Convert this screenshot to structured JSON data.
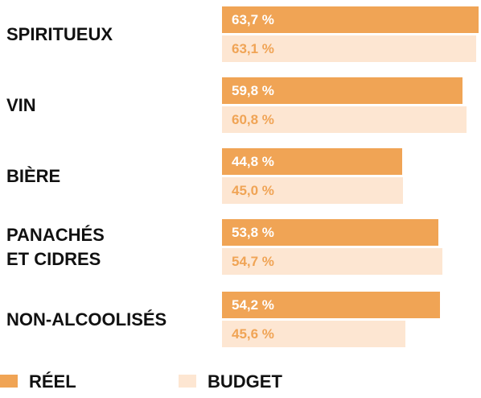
{
  "chart_data": {
    "type": "hbar",
    "categories": [
      "SPIRITUEUX",
      "VIN",
      "BIÈRE",
      "PANACHÉS\nET CIDRES",
      "NON-ALCOOLISÉS"
    ],
    "series": [
      {
        "name": "RÉEL",
        "color": "#f0a455",
        "values": [
          63.7,
          59.8,
          44.8,
          53.8,
          54.2
        ],
        "value_labels": [
          "63,7 %",
          "59,8 %",
          "44,8 %",
          "53,8 %",
          "54,2 %"
        ]
      },
      {
        "name": "BUDGET",
        "color": "#fde6d2",
        "values": [
          63.1,
          60.8,
          45.0,
          54.7,
          45.6
        ],
        "value_labels": [
          "63,1 %",
          "60,8 %",
          "45,0 %",
          "54,7 %",
          "45,6 %"
        ]
      }
    ]
  }
}
